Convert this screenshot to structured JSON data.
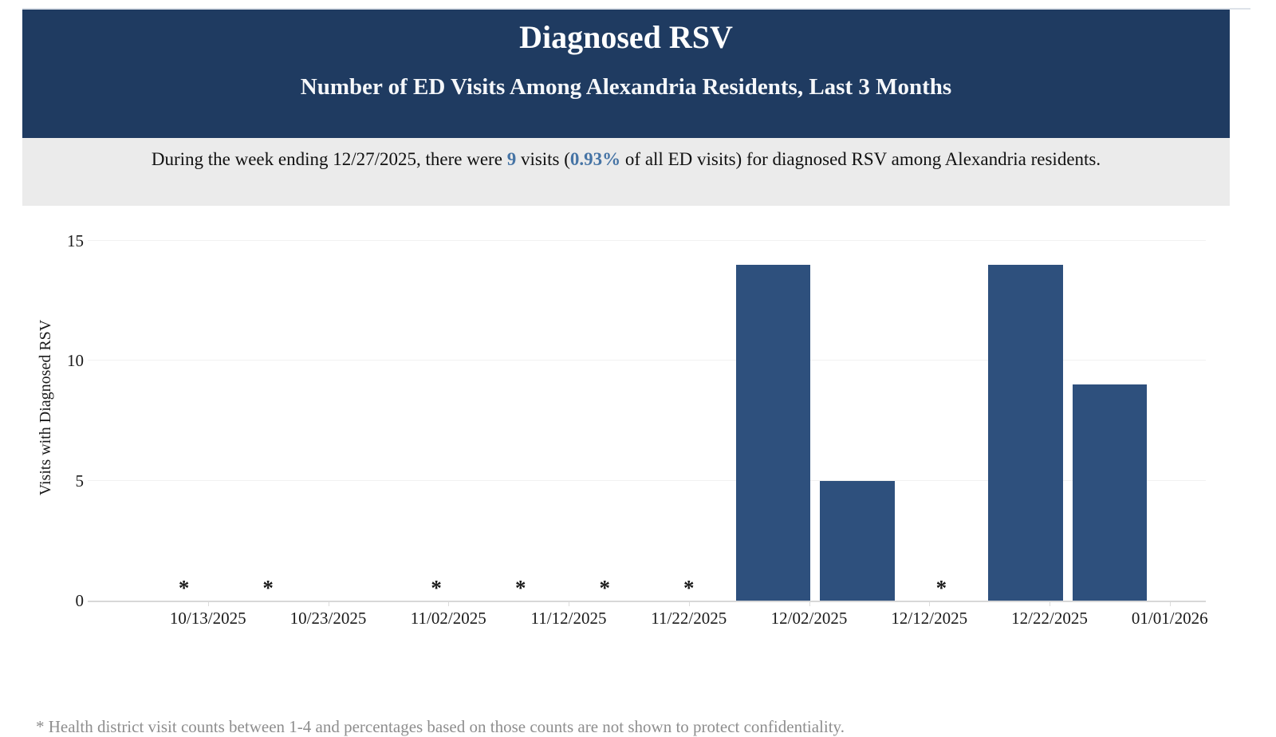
{
  "header": {
    "title": "Diagnosed RSV",
    "subtitle": "Number of ED Visits Among Alexandria Residents, Last 3 Months",
    "background_color": "#1f3b61"
  },
  "summary": {
    "text_before_count": "During the week ending 12/27/2025, there were ",
    "visits_count": "9",
    "text_between": " visits (",
    "percent_of_visits": "0.93%",
    "text_after": " of all ED visits) for diagnosed RSV among Alexandria residents.",
    "highlight_color": "#4674a5",
    "background_color": "#ebebeb"
  },
  "footnote": {
    "text": "* Health district visit counts between 1-4 and percentages based on those counts are not shown to protect confidentiality."
  },
  "chart_data": {
    "type": "bar",
    "title": "Diagnosed RSV",
    "xlabel": "",
    "ylabel": "Visits with Diagnosed RSV",
    "ylim": [
      0,
      15
    ],
    "yticks": [
      0,
      5,
      10,
      15
    ],
    "grid": "horizontal-only",
    "bar_color": "#2e507d",
    "suppressed_marker": "*",
    "x_tick_labels": [
      "10/13/2025",
      "10/23/2025",
      "11/02/2025",
      "11/12/2025",
      "11/22/2025",
      "12/02/2025",
      "12/12/2025",
      "12/22/2025",
      "01/01/2026"
    ],
    "points": [
      {
        "week_ending": "10/11/2025",
        "value": null,
        "suppressed": true
      },
      {
        "week_ending": "10/18/2025",
        "value": null,
        "suppressed": true
      },
      {
        "week_ending": "10/25/2025",
        "value": 0,
        "suppressed": false
      },
      {
        "week_ending": "11/01/2025",
        "value": null,
        "suppressed": true
      },
      {
        "week_ending": "11/08/2025",
        "value": null,
        "suppressed": true
      },
      {
        "week_ending": "11/15/2025",
        "value": null,
        "suppressed": true
      },
      {
        "week_ending": "11/22/2025",
        "value": null,
        "suppressed": true
      },
      {
        "week_ending": "11/29/2025",
        "value": 14,
        "suppressed": false
      },
      {
        "week_ending": "12/06/2025",
        "value": 5,
        "suppressed": false
      },
      {
        "week_ending": "12/13/2025",
        "value": null,
        "suppressed": true
      },
      {
        "week_ending": "12/20/2025",
        "value": 14,
        "suppressed": false
      },
      {
        "week_ending": "12/27/2025",
        "value": 9,
        "suppressed": false
      }
    ]
  }
}
